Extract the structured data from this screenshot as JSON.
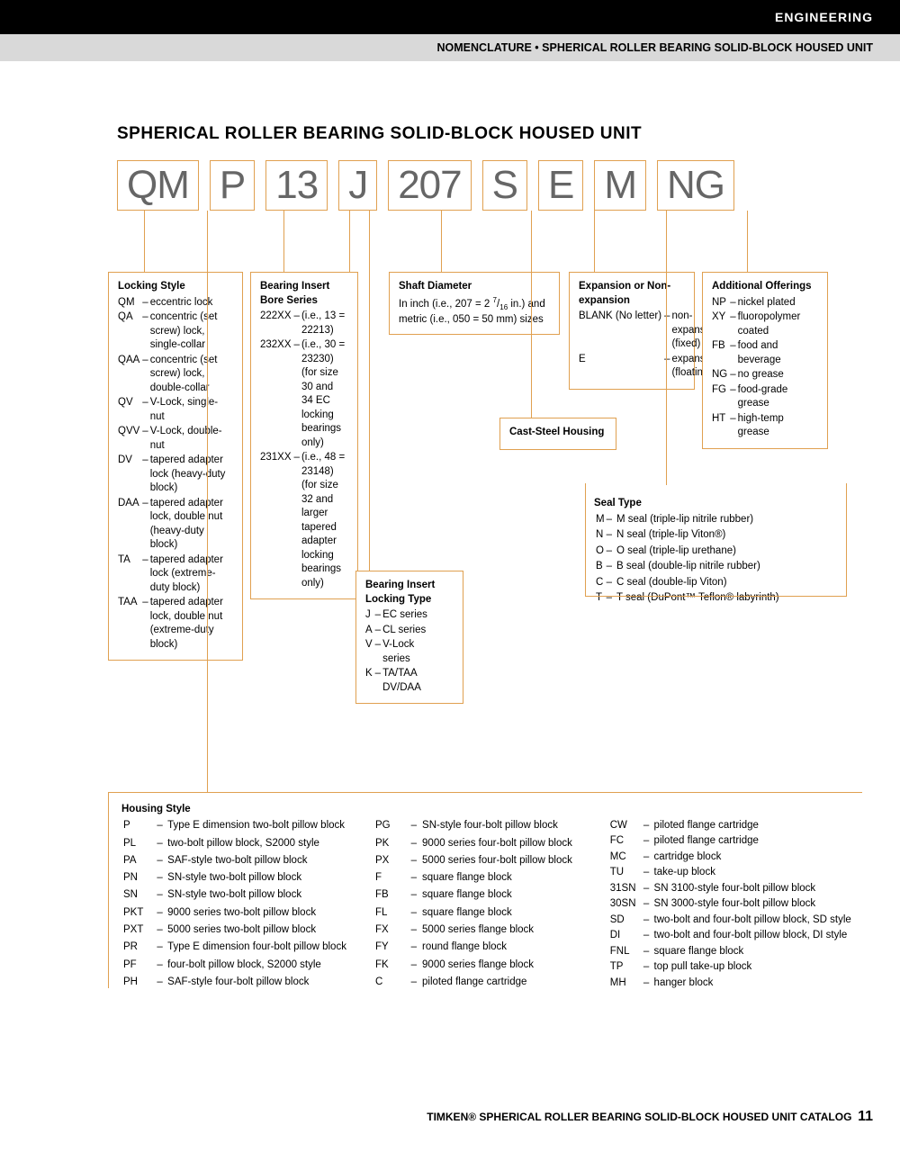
{
  "header": {
    "category": "ENGINEERING",
    "subtitle": "NOMENCLATURE • SPHERICAL ROLLER BEARING SOLID-BLOCK HOUSED UNIT"
  },
  "title": "SPHERICAL ROLLER BEARING SOLID-BLOCK HOUSED UNIT",
  "codes": [
    "QM",
    "P",
    "13",
    "J",
    "207",
    "S",
    "E",
    "M",
    "NG"
  ],
  "locking_style": {
    "title": "Locking Style",
    "items": [
      {
        "c": "QM",
        "d": "eccentric lock"
      },
      {
        "c": "QA",
        "d": "concentric (set screw) lock, single-collar"
      },
      {
        "c": "QAA",
        "d": "concentric (set screw) lock, double-collar"
      },
      {
        "c": "QV",
        "d": "V-Lock, single-nut"
      },
      {
        "c": "QVV",
        "d": "V-Lock, double-nut"
      },
      {
        "c": "DV",
        "d": "tapered adapter lock (heavy-duty block)"
      },
      {
        "c": "DAA",
        "d": "tapered adapter lock, double nut (heavy-duty block)"
      },
      {
        "c": "TA",
        "d": "tapered adapter lock (extreme-duty block)"
      },
      {
        "c": "TAA",
        "d": "tapered adapter lock, double nut (extreme-duty block)"
      }
    ]
  },
  "bore_series": {
    "title": "Bearing Insert Bore Series",
    "items": [
      {
        "c": "222XX",
        "d": "(i.e., 13 = 22213)"
      },
      {
        "c": "232XX",
        "d": "(i.e., 30 = 23230) (for size 30 and 34 EC locking bearings only)"
      },
      {
        "c": "231XX",
        "d": "(i.e., 48 = 23148) (for size 32 and larger tapered adapter locking bearings only)"
      }
    ]
  },
  "locking_type": {
    "title": "Bearing Insert Locking Type",
    "items": [
      {
        "c": "J",
        "d": "EC series"
      },
      {
        "c": "A",
        "d": "CL series"
      },
      {
        "c": "V",
        "d": "V-Lock series"
      },
      {
        "c": "K",
        "d": "TA/TAA DV/DAA"
      }
    ]
  },
  "shaft": {
    "title": "Shaft Diameter",
    "text": "In inch (i.e., 207 = 2 7/16 in.) and metric (i.e., 050 = 50 mm) sizes"
  },
  "cast": {
    "title": "Cast-Steel Housing"
  },
  "expansion": {
    "title": "Expansion or Non-expansion",
    "items": [
      {
        "c": "BLANK (No letter)",
        "d": "non-expansion (fixed)"
      },
      {
        "c": "E",
        "d": "expansion (floating)"
      }
    ]
  },
  "seal": {
    "title": "Seal Type",
    "items": [
      {
        "c": "M",
        "d": "M seal (triple-lip nitrile rubber)"
      },
      {
        "c": "N",
        "d": "N seal (triple-lip Viton®)"
      },
      {
        "c": "O",
        "d": "O seal (triple-lip urethane)"
      },
      {
        "c": "B",
        "d": "B seal (double-lip nitrile rubber)"
      },
      {
        "c": "C",
        "d": "C seal (double-lip Viton)"
      },
      {
        "c": "T",
        "d": "T seal (DuPont™ Teflon® labyrinth)"
      }
    ]
  },
  "additional": {
    "title": "Additional Offerings",
    "items": [
      {
        "c": "NP",
        "d": "nickel plated"
      },
      {
        "c": "XY",
        "d": "fluoropolymer coated"
      },
      {
        "c": "FB",
        "d": "food and beverage"
      },
      {
        "c": "NG",
        "d": "no grease"
      },
      {
        "c": "FG",
        "d": "food-grade grease"
      },
      {
        "c": "HT",
        "d": "high-temp grease"
      }
    ]
  },
  "housing": {
    "title": "Housing Style",
    "col1": [
      {
        "c": "P",
        "d": "Type E dimension two-bolt pillow block"
      },
      {
        "c": "PL",
        "d": "two-bolt pillow block, S2000 style"
      },
      {
        "c": "PA",
        "d": "SAF-style two-bolt pillow block"
      },
      {
        "c": "PN",
        "d": "SN-style two-bolt pillow block"
      },
      {
        "c": "SN",
        "d": "SN-style two-bolt pillow block"
      },
      {
        "c": "PKT",
        "d": "9000 series two-bolt pillow block"
      },
      {
        "c": "PXT",
        "d": "5000 series two-bolt pillow block"
      },
      {
        "c": "PR",
        "d": "Type E dimension four-bolt pillow block"
      },
      {
        "c": "PF",
        "d": "four-bolt pillow block, S2000 style"
      },
      {
        "c": "PH",
        "d": "SAF-style four-bolt pillow block"
      }
    ],
    "col2": [
      {
        "c": "PG",
        "d": "SN-style four-bolt pillow block"
      },
      {
        "c": "PK",
        "d": "9000 series four-bolt pillow block"
      },
      {
        "c": "PX",
        "d": "5000 series four-bolt pillow block"
      },
      {
        "c": "F",
        "d": "square flange block"
      },
      {
        "c": "FB",
        "d": "square flange block"
      },
      {
        "c": "FL",
        "d": "square flange block"
      },
      {
        "c": "FX",
        "d": "5000 series flange block"
      },
      {
        "c": "FY",
        "d": "round flange block"
      },
      {
        "c": "FK",
        "d": "9000 series flange block"
      },
      {
        "c": "C",
        "d": "piloted flange cartridge"
      }
    ],
    "col3": [
      {
        "c": "CW",
        "d": "piloted flange cartridge"
      },
      {
        "c": "FC",
        "d": "piloted flange cartridge"
      },
      {
        "c": "MC",
        "d": "cartridge block"
      },
      {
        "c": "TU",
        "d": "take-up block"
      },
      {
        "c": "31SN",
        "d": "SN 3100-style four-bolt pillow block"
      },
      {
        "c": "30SN",
        "d": "SN 3000-style four-bolt pillow block"
      },
      {
        "c": "SD",
        "d": "two-bolt and four-bolt pillow block, SD style"
      },
      {
        "c": "DI",
        "d": "two-bolt and four-bolt pillow block, DI style"
      },
      {
        "c": "FNL",
        "d": "square flange block"
      },
      {
        "c": "TP",
        "d": "top pull take-up block"
      },
      {
        "c": "MH",
        "d": "hanger block"
      }
    ]
  },
  "footer": {
    "text": "TIMKEN® SPHERICAL ROLLER BEARING SOLID-BLOCK HOUSED UNIT CATALOG",
    "page": "11"
  },
  "colors": {
    "box_border": "#e0a050",
    "code_text": "#666666",
    "black": "#000000",
    "grey": "#d9d9d9"
  }
}
